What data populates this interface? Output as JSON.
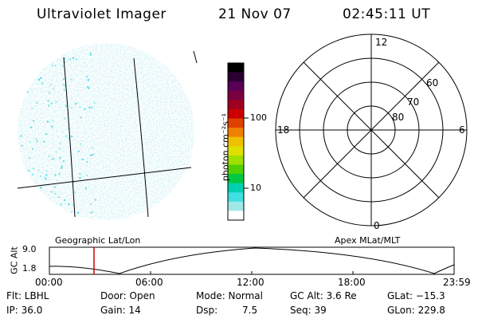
{
  "header": {
    "title": "Ultraviolet Imager",
    "date": "21 Nov 07",
    "time": "02:45:11 UT"
  },
  "colorbar": {
    "label": "photon cm⁻²s⁻¹",
    "ticks": [
      "100",
      "10"
    ],
    "colors": [
      "#000000",
      "#2a0033",
      "#5a0057",
      "#7a0040",
      "#a00020",
      "#cc0000",
      "#e04000",
      "#f08000",
      "#f0c000",
      "#e0e000",
      "#a0e000",
      "#50d000",
      "#00c840",
      "#00d0b0",
      "#40e0e0",
      "#a0e8e8",
      "#ffffff"
    ]
  },
  "polar": {
    "labels": {
      "mlt12": "12",
      "mlt18": "18",
      "mlt6": "6",
      "mlt0": "0",
      "lat60": "60",
      "lat70": "70",
      "lat80": "80"
    }
  },
  "strip": {
    "left_title": "Geographic Lat/Lon",
    "right_title": "Apex MLat/MLT",
    "ylabel": "GC Alt",
    "ytop": "9.0",
    "ybottom": "1.8",
    "xticks": [
      "00:00",
      "06:00",
      "12:00",
      "18:00",
      "23:59"
    ],
    "marker_color": "#cc0000"
  },
  "footer": {
    "flt": "Flt: LBHL",
    "ip": "IP: 36.0",
    "door": "Door: Open",
    "gain": "Gain: 14",
    "mode": "Mode: Normal",
    "dsp_label": "Dsp:",
    "dsp_value": "7.5",
    "gcalt": "GC Alt: 3.6 Re",
    "seq": "Seq: 39",
    "glat": "GLat: −15.3",
    "glon": "GLon: 229.8"
  }
}
